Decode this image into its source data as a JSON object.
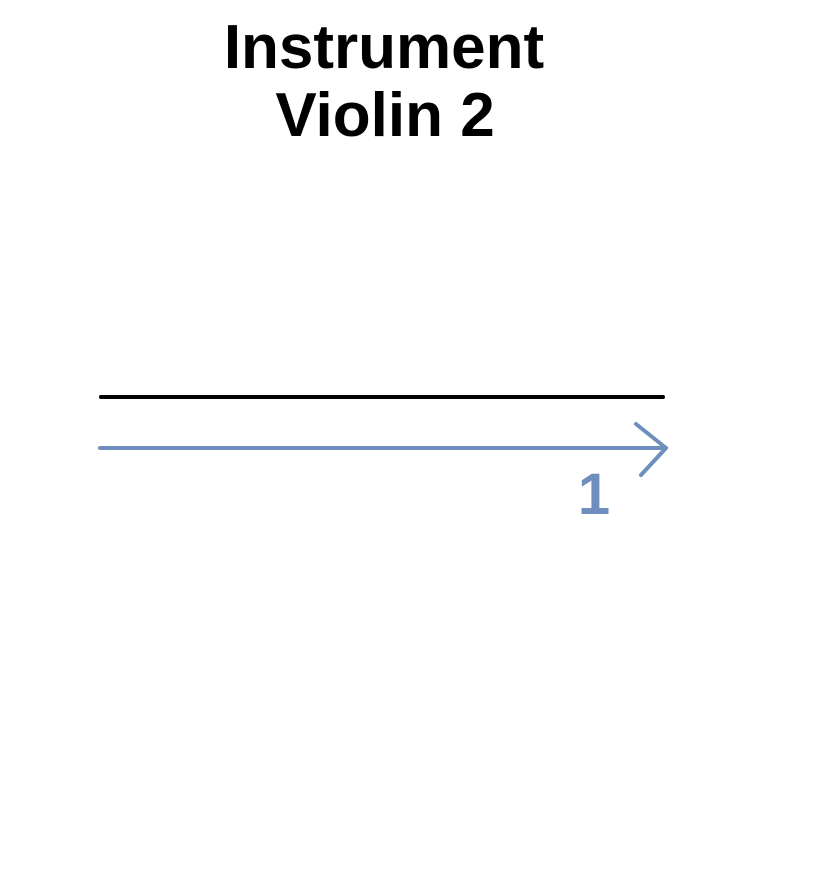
{
  "header": {
    "title": "Instrument",
    "subtitle": "Violin 2"
  },
  "diagram": {
    "segment_label": "1",
    "colors": {
      "reference_line": "#000000",
      "arrow": "#6e8fbe",
      "label": "#6e8fbe"
    }
  }
}
